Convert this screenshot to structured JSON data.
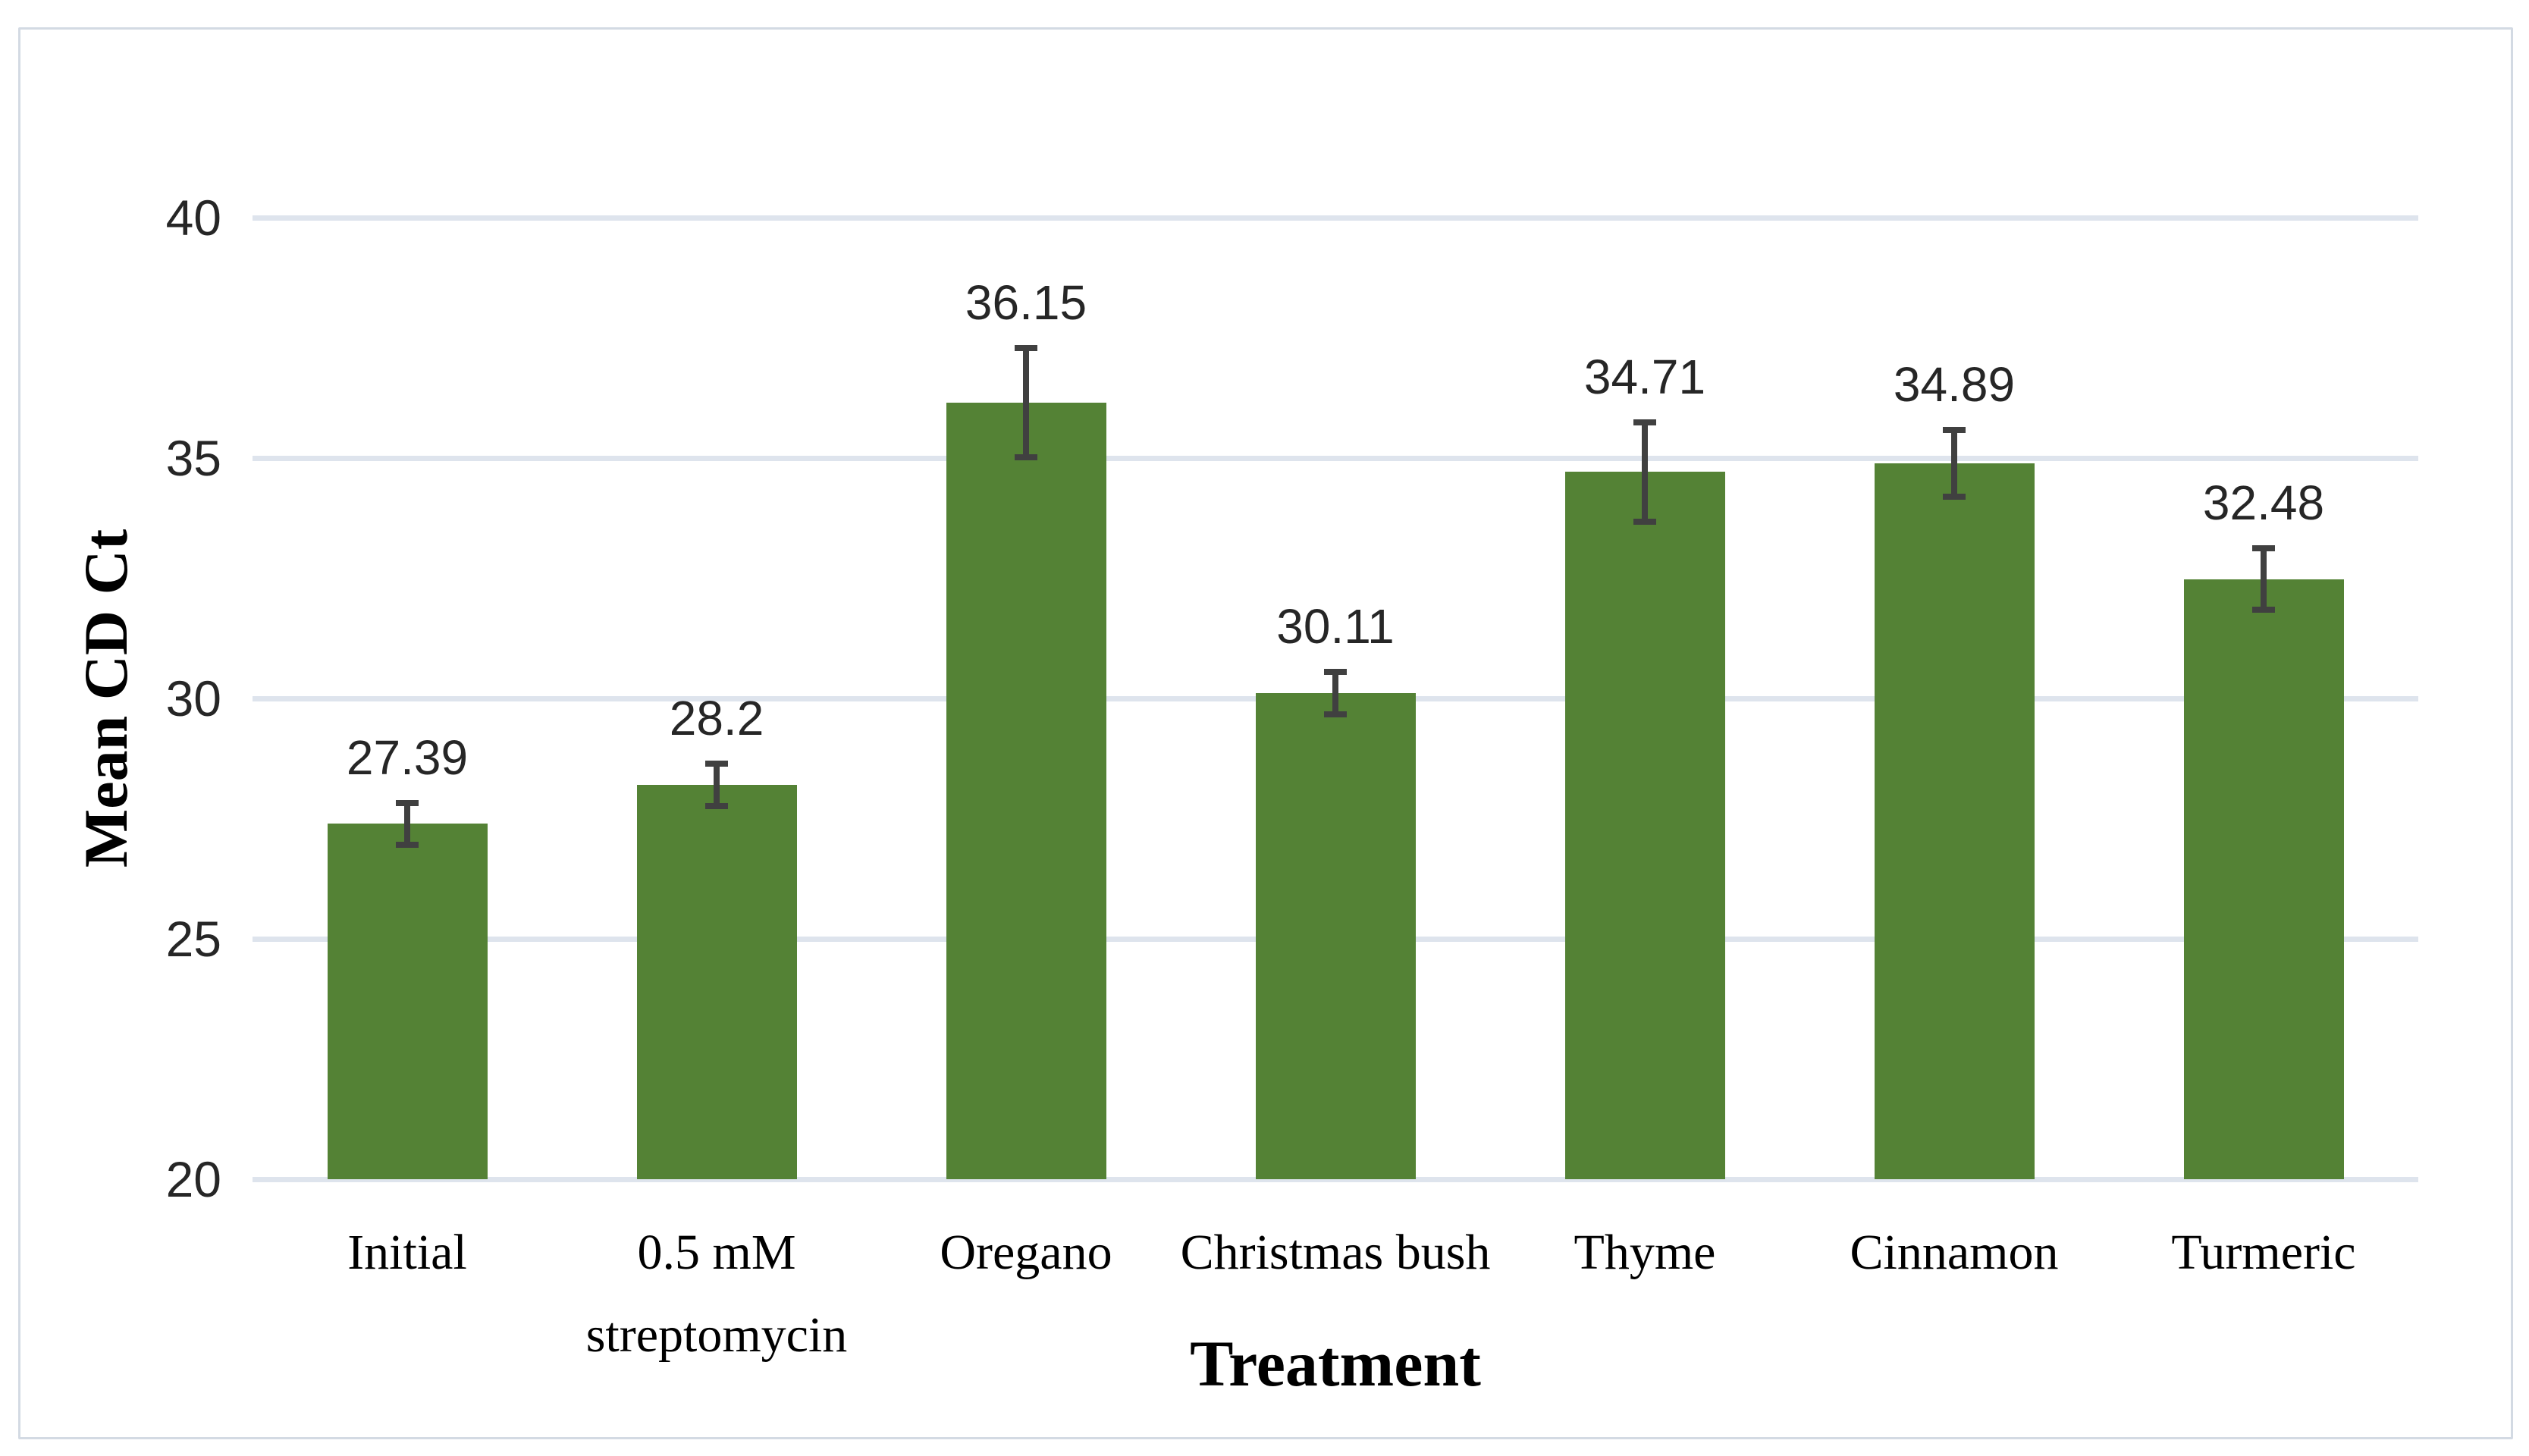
{
  "chart_data": {
    "type": "bar",
    "title": "",
    "xlabel": "Treatment",
    "ylabel": "Mean CD Ct",
    "categories": [
      "Initial",
      "0.5 mM streptomycin",
      "Oregano",
      "Christmas bush",
      "Thyme",
      "Cinnamon",
      "Turmeric"
    ],
    "values": [
      27.39,
      28.2,
      36.15,
      30.11,
      34.71,
      34.89,
      32.48
    ],
    "data_labels": [
      "27.39",
      "28.2",
      "36.15",
      "30.11",
      "34.71",
      "34.89",
      "32.48"
    ],
    "error_bars_plus_minus": [
      0.5,
      0.5,
      1.2,
      0.5,
      1.1,
      0.75,
      0.7
    ],
    "ylim": [
      20,
      40
    ],
    "yticks": [
      20,
      25,
      30,
      35,
      40
    ],
    "grid": "horizontal gridlines on",
    "legend": "none",
    "bar_color": "#548235",
    "error_bar_color": "#404040",
    "gridline_color": "#dee4ed",
    "tick_label_color": "#262626",
    "axis_title_color": "#000000",
    "background_color": "#ffffff",
    "border_color": "#d3dae3"
  }
}
